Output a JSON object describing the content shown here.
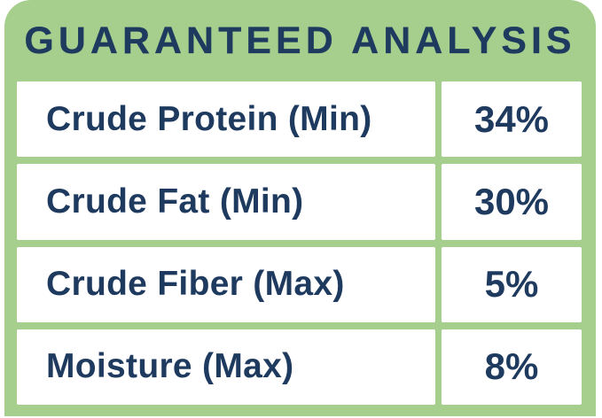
{
  "header": {
    "title": "GUARANTEED ANALYSIS"
  },
  "table": {
    "rows": [
      {
        "label": "Crude Protein (Min)",
        "value": "34%"
      },
      {
        "label": "Crude Fat (Min)",
        "value": "30%"
      },
      {
        "label": "Crude Fiber (Max)",
        "value": "5%"
      },
      {
        "label": "Moisture (Max)",
        "value": "8%"
      }
    ]
  },
  "colors": {
    "green": "#a6ce8d",
    "navy": "#1e3a5f",
    "white": "#ffffff"
  }
}
